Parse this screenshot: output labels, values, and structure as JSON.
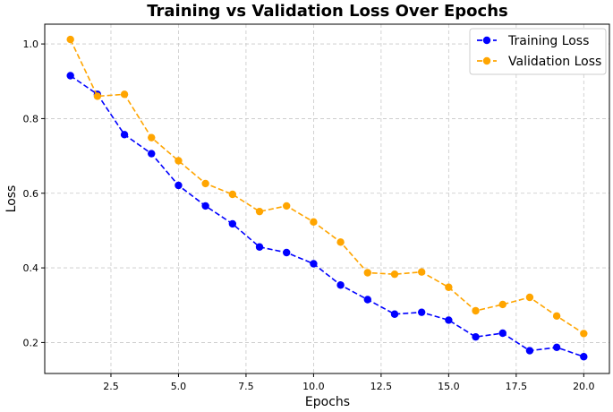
{
  "chart_data": {
    "type": "line",
    "title": "Training vs Validation Loss Over Epochs",
    "xlabel": "Epochs",
    "ylabel": "Loss",
    "xlim": [
      0.05,
      20.95
    ],
    "ylim": [
      0.117,
      1.053
    ],
    "grid": true,
    "legend_position": "top-right",
    "x_ticks": [
      2.5,
      5.0,
      7.5,
      10.0,
      12.5,
      15.0,
      17.5,
      20.0
    ],
    "y_ticks": [
      0.2,
      0.4,
      0.6,
      0.8,
      1.0
    ],
    "x_tick_labels": [
      "2.5",
      "5.0",
      "7.5",
      "10.0",
      "12.5",
      "15.0",
      "17.5",
      "20.0"
    ],
    "y_tick_labels": [
      "0.2",
      "0.4",
      "0.6",
      "0.8",
      "1.0"
    ],
    "x": [
      1,
      2,
      3,
      4,
      5,
      6,
      7,
      8,
      9,
      10,
      11,
      12,
      13,
      14,
      15,
      16,
      17,
      18,
      19,
      20
    ],
    "series": [
      {
        "name": "Training Loss",
        "color": "#0000ff",
        "values": [
          0.915,
          0.865,
          0.757,
          0.706,
          0.621,
          0.566,
          0.518,
          0.456,
          0.441,
          0.411,
          0.354,
          0.315,
          0.276,
          0.281,
          0.26,
          0.215,
          0.225,
          0.178,
          0.187,
          0.162
        ]
      },
      {
        "name": "Validation Loss",
        "color": "#ffa500",
        "values": [
          1.012,
          0.86,
          0.865,
          0.749,
          0.687,
          0.626,
          0.597,
          0.551,
          0.566,
          0.523,
          0.469,
          0.387,
          0.383,
          0.389,
          0.348,
          0.285,
          0.302,
          0.321,
          0.271,
          0.224
        ]
      }
    ]
  }
}
